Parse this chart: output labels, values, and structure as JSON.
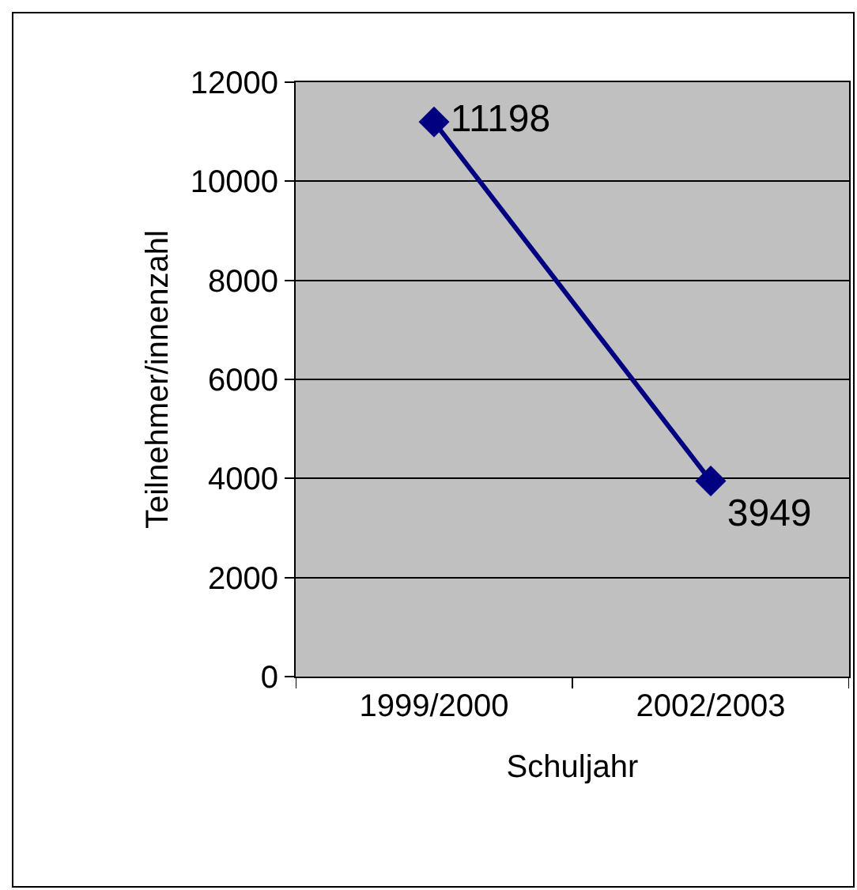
{
  "chart_data": {
    "type": "line",
    "xlabel": "Schuljahr",
    "ylabel": "Teilnehmer/innenzahl",
    "categories": [
      "1999/2000",
      "2002/2003"
    ],
    "series": [
      {
        "color": "#000080",
        "values": [
          11198,
          3949
        ]
      }
    ],
    "ylim": [
      0,
      12000
    ],
    "yticks": [
      0,
      2000,
      4000,
      6000,
      8000,
      10000,
      12000
    ],
    "grid": "y",
    "legend": false,
    "marker": "diamond",
    "line_style": "solid",
    "data_labels": true
  }
}
